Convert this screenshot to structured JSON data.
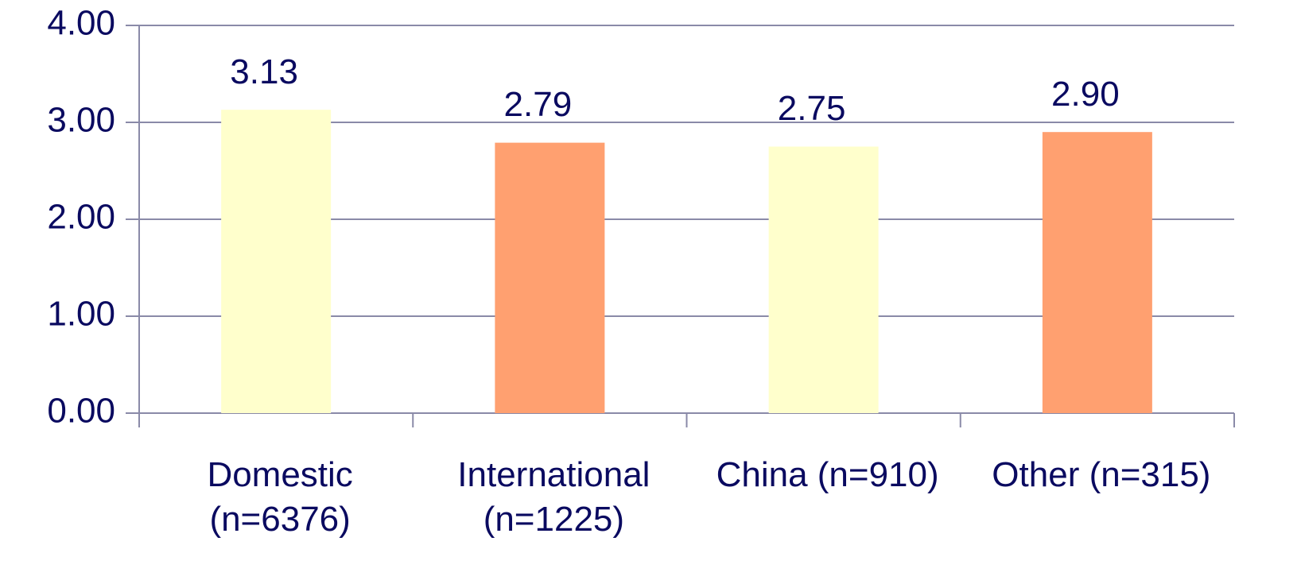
{
  "chart_data": {
    "type": "bar",
    "categories": [
      "Domestic (n=6376)",
      "International (n=1225)",
      "China (n=910)",
      "Other (n=315)"
    ],
    "values": [
      3.13,
      2.79,
      2.75,
      2.9
    ],
    "value_labels": [
      "3.13",
      "2.79",
      "2.75",
      "2.90"
    ],
    "colors": [
      "#ffffcc",
      "#ffa070",
      "#ffffcc",
      "#ffa070"
    ],
    "ylim": [
      0,
      4
    ],
    "yticks": [
      {
        "value": 0,
        "label": "0.00"
      },
      {
        "value": 1,
        "label": "1.00"
      },
      {
        "value": 2,
        "label": "2.00"
      },
      {
        "value": 3,
        "label": "3.00"
      },
      {
        "value": 4,
        "label": "4.00"
      }
    ],
    "grid": true
  }
}
